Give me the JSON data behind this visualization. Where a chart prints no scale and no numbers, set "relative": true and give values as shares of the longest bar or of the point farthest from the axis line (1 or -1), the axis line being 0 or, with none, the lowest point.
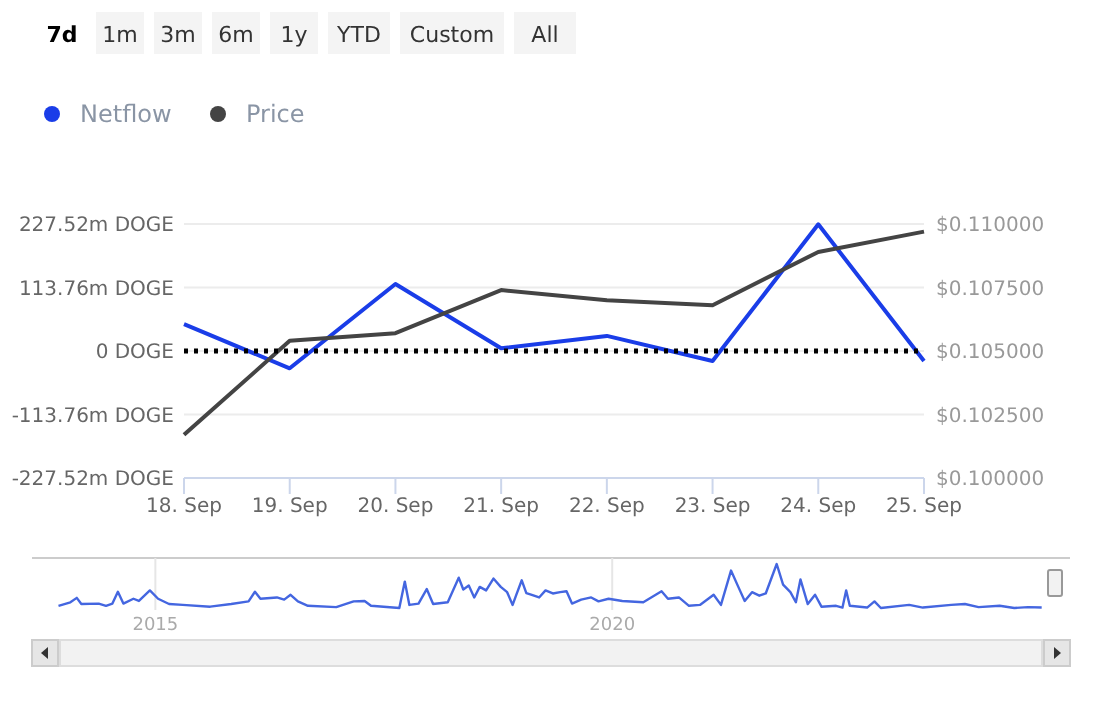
{
  "chart_data": [
    {
      "type": "line",
      "annotations": [
        "7d",
        "1m",
        "3m",
        "6m",
        "1y",
        "YTD",
        "Custom",
        "All"
      ],
      "x": [
        "--09-18",
        "--09-19",
        "--09-20",
        "--09-21",
        "--09-22",
        "--09-23",
        "--09-24",
        "--09-25"
      ],
      "xlim": [
        "--09-18",
        "--09-25"
      ],
      "xticks": [
        {
          "value": "--09-18",
          "label": "18. Sep"
        },
        {
          "value": "--09-19",
          "label": "19. Sep"
        },
        {
          "value": "--09-20",
          "label": "20. Sep"
        },
        {
          "value": "--09-21",
          "label": "21. Sep"
        },
        {
          "value": "--09-22",
          "label": "22. Sep"
        },
        {
          "value": "--09-23",
          "label": "23. Sep"
        },
        {
          "value": "--09-24",
          "label": "24. Sep"
        },
        {
          "value": "--09-25",
          "label": "25. Sep"
        }
      ],
      "series": [
        {
          "name": "Netflow",
          "color": "#1a3de8",
          "values": [
            48,
            -31,
            120,
            5,
            27,
            -18,
            227,
            -18
          ]
        },
        {
          "name": "Price",
          "color": "#444444",
          "axis": "y2",
          "values": [
            0.1017,
            0.1054,
            0.1057,
            0.1074,
            0.107,
            0.1068,
            0.1089,
            0.1097
          ]
        }
      ],
      "ylim": [
        -227.52,
        227.52
      ],
      "yticks": [
        {
          "value": -227.52,
          "label": "-227.52m DOGE"
        },
        {
          "value": -113.76,
          "label": "-113.76m DOGE"
        },
        {
          "value": 0,
          "label": "0 DOGE"
        },
        {
          "value": 113.76,
          "label": "113.76m DOGE"
        },
        {
          "value": 227.52,
          "label": "227.52m DOGE"
        }
      ],
      "y2lim": [
        0.1,
        0.11
      ],
      "y2ticks": [
        {
          "value": 0.1,
          "label": "$0.100000"
        },
        {
          "value": 0.1025,
          "label": "$0.102500"
        },
        {
          "value": 0.105,
          "label": "$0.105000"
        },
        {
          "value": 0.1075,
          "label": "$0.107500"
        },
        {
          "value": 0.11,
          "label": "$0.110000"
        }
      ],
      "ref_lines": [
        {
          "axis": "y",
          "value": 0,
          "color": "#000000",
          "line_style": "dotted"
        }
      ],
      "grid": "y",
      "legend": "top left",
      "marker": "none"
    },
    {
      "type": "line",
      "relative": true,
      "color": "#4466e0",
      "x": [
        2013.94,
        2014.07,
        2014.14,
        2014.19,
        2014.38,
        2014.46,
        2014.53,
        2014.59,
        2014.65,
        2014.76,
        2014.82,
        2014.94,
        2015.03,
        2015.15,
        2015.3,
        2015.6,
        2015.83,
        2016.02,
        2016.09,
        2016.15,
        2016.33,
        2016.41,
        2016.48,
        2016.56,
        2016.67,
        2016.98,
        2017.17,
        2017.29,
        2017.36,
        2017.67,
        2017.73,
        2017.78,
        2017.88,
        2017.97,
        2018.04,
        2018.2,
        2018.32,
        2018.37,
        2018.43,
        2018.49,
        2018.55,
        2018.62,
        2018.7,
        2018.78,
        2018.85,
        2018.91,
        2018.95,
        2019.01,
        2019.06,
        2019.12,
        2019.2,
        2019.27,
        2019.35,
        2019.43,
        2019.5,
        2019.56,
        2019.66,
        2019.77,
        2019.85,
        2019.96,
        2020.11,
        2020.34,
        2020.54,
        2020.61,
        2020.73,
        2020.84,
        2020.96,
        2021.11,
        2021.19,
        2021.3,
        2021.38,
        2021.45,
        2021.53,
        2021.61,
        2021.68,
        2021.8,
        2021.87,
        2021.95,
        2022.01,
        2022.06,
        2022.14,
        2022.22,
        2022.29,
        2022.45,
        2022.52,
        2022.56,
        2022.6,
        2022.79,
        2022.87,
        2022.94,
        2023.25,
        2023.4,
        2023.71,
        2023.86,
        2024.01,
        2024.24,
        2024.4,
        2024.55,
        2024.7
      ],
      "values": [
        0.05,
        0.13,
        0.23,
        0.09,
        0.1,
        0.05,
        0.1,
        0.37,
        0.1,
        0.21,
        0.16,
        0.4,
        0.21,
        0.09,
        0.07,
        0.03,
        0.09,
        0.15,
        0.37,
        0.21,
        0.24,
        0.19,
        0.3,
        0.15,
        0.05,
        0.02,
        0.15,
        0.16,
        0.05,
        0,
        0.6,
        0.07,
        0.1,
        0.43,
        0.09,
        0.13,
        0.69,
        0.42,
        0.51,
        0.24,
        0.48,
        0.4,
        0.67,
        0.48,
        0.36,
        0.07,
        0.3,
        0.63,
        0.34,
        0.3,
        0.24,
        0.4,
        0.33,
        0.36,
        0.38,
        0.1,
        0.19,
        0.24,
        0.15,
        0.21,
        0.16,
        0.13,
        0.38,
        0.21,
        0.24,
        0.05,
        0.07,
        0.3,
        0.07,
        0.85,
        0.48,
        0.16,
        0.36,
        0.28,
        0.33,
        1.0,
        0.53,
        0.36,
        0.13,
        0.65,
        0.09,
        0.3,
        0.03,
        0.05,
        0.01,
        0.4,
        0.05,
        0.01,
        0.15,
        0,
        0.07,
        0.01,
        0.07,
        0.09,
        0.02,
        0.05,
        0,
        0.02,
        0.01
      ],
      "xlim": [
        2013.65,
        2025.01
      ],
      "xticks": [
        2015,
        2020
      ],
      "grid": "x"
    }
  ]
}
